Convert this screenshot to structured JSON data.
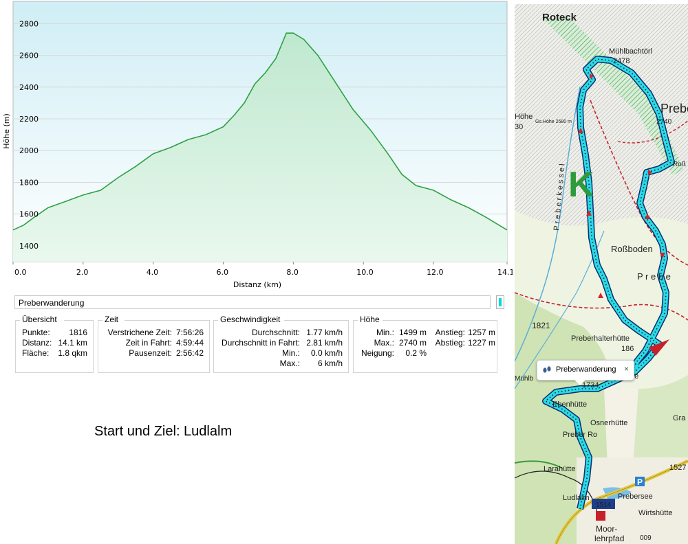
{
  "chart_data": {
    "type": "area",
    "xlabel": "Distanz  (km)",
    "ylabel": "Höhe (m)",
    "xlim": [
      0,
      14.1
    ],
    "ylim": [
      1300,
      2940
    ],
    "x_ticks": [
      "0.0",
      "2.0",
      "4.0",
      "6.0",
      "8.0",
      "10.0",
      "12.0",
      "14.1"
    ],
    "y_ticks": [
      "1400",
      "1600",
      "1800",
      "2000",
      "2200",
      "2400",
      "2600",
      "2800"
    ],
    "grid": "horizontal",
    "line_color": "#2ea043",
    "series": [
      {
        "x": [
          0,
          0.3,
          0.6,
          1.0,
          1.5,
          2.0,
          2.5,
          3.0,
          3.5,
          4.0,
          4.5,
          5.0,
          5.5,
          6.0,
          6.3,
          6.6,
          6.9,
          7.2,
          7.5,
          7.8,
          8.0,
          8.3,
          8.7,
          9.2,
          9.7,
          10.2,
          10.7,
          11.1,
          11.5,
          12.0,
          12.5,
          13.0,
          13.5,
          14.1
        ],
        "y": [
          1500,
          1530,
          1580,
          1640,
          1680,
          1720,
          1750,
          1830,
          1900,
          1980,
          2020,
          2070,
          2100,
          2150,
          2220,
          2300,
          2420,
          2490,
          2580,
          2740,
          2740,
          2700,
          2600,
          2430,
          2260,
          2130,
          1980,
          1850,
          1780,
          1750,
          1690,
          1640,
          1580,
          1500
        ]
      }
    ]
  },
  "track": {
    "name": "Preberwanderung",
    "color": "#00d7e0"
  },
  "overview": {
    "legend": "Übersicht",
    "rows": [
      {
        "label": "Punkte:",
        "value": "1816"
      },
      {
        "label": "Distanz:",
        "value": "14.1 km"
      },
      {
        "label": "Fläche:",
        "value": "1.8 qkm"
      }
    ]
  },
  "time": {
    "legend": "Zeit",
    "rows": [
      {
        "label": "Verstrichene Zeit:",
        "value": "7:56:26"
      },
      {
        "label": "Zeit in Fahrt:",
        "value": "4:59:44"
      },
      {
        "label": "Pausenzeit:",
        "value": "2:56:42"
      }
    ]
  },
  "speed": {
    "legend": "Geschwindigkeit",
    "rows": [
      {
        "label": "Durchschnitt:",
        "value": "1.77 km/h"
      },
      {
        "label": "Durchschnitt in Fahrt:",
        "value": "2.81 km/h"
      },
      {
        "label": "Min.:",
        "value": "0.0 km/h"
      },
      {
        "label": "Max.:",
        "value": "6 km/h"
      }
    ]
  },
  "height": {
    "legend": "Höhe",
    "min_label": "Min.:",
    "min_value": "1499 m",
    "max_label": "Max.:",
    "max_value": "2740 m",
    "slope_label": "Neigung:",
    "slope_value": "0.2 %",
    "ascent_label": "Anstieg:",
    "ascent_value": "1257 m",
    "descent_label": "Abstieg:",
    "descent_value": "1227 m"
  },
  "note": "Start und Ziel: Ludlalm",
  "map": {
    "labels": {
      "roteck": "Roteck",
      "muehlbachtoerl": "Mühlbachtörl",
      "pt_2478": "2478",
      "prebe": "Prebe",
      "pt_2740": "2740",
      "hoehe": "Höhe",
      "gs": "Gs.Höhe 2580 m",
      "pt_30": "30",
      "ross_top": "Roß",
      "rossboden": "Roßboden",
      "prebe2": "P r e b e",
      "preberkessel": "P r e b e r k e s s e l",
      "pt_1821": "1821",
      "preberhalter": "Preberhalterhütte",
      "pt_186": "186",
      "muehl": "Mühlb",
      "tte": "tte",
      "pt_1734": "1734",
      "ebenhuette": "Ebenhütte",
      "gra": "Gra",
      "osnerhuette": "Osnerhütte",
      "preber_ro": "Preber Ro",
      "larahuette": "Larahütte",
      "pt_1527": "1527",
      "ludlalm": "Ludlalm",
      "prebersee": "Prebersee",
      "pt_1514": "1514",
      "wirtshuette": "Wirtshütte",
      "moor": "Moor-",
      "lehrpfad": "lehrpfad",
      "pt_009": "009",
      "sign_k": "K",
      "parking": "P"
    },
    "tooltip": "Preberwanderung",
    "tooltip_close": "×"
  }
}
